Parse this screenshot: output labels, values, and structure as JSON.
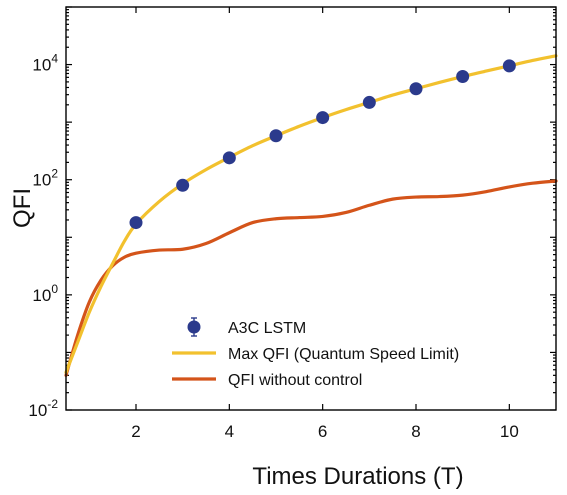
{
  "chart_data": {
    "type": "line",
    "title": "",
    "xlabel": "Times Durations (T)",
    "ylabel": "QFI",
    "xlim": [
      0.5,
      11.0
    ],
    "ylim": [
      0.01,
      100000
    ],
    "yscale": "log",
    "xticks": [
      2,
      4,
      6,
      8,
      10
    ],
    "yticks": [
      {
        "value": 0.01,
        "base": "10",
        "exp": "-2"
      },
      {
        "value": 1,
        "base": "10",
        "exp": "0"
      },
      {
        "value": 100,
        "base": "10",
        "exp": "2"
      },
      {
        "value": 10000,
        "base": "10",
        "exp": "4"
      }
    ],
    "grid": false,
    "legend_position": "lower-right",
    "series": [
      {
        "name": "A3C LSTM",
        "kind": "scatter",
        "color": "#2b3a8c",
        "x": [
          2,
          3,
          4,
          5,
          6,
          7,
          8,
          9,
          10
        ],
        "y": [
          18,
          80,
          240,
          580,
          1200,
          2200,
          3800,
          6200,
          9500
        ]
      },
      {
        "name": "Max QFI (Quantum Speed Limit)",
        "kind": "line",
        "color": "#f2c12e",
        "x": [
          0.5,
          0.75,
          1.0,
          1.25,
          1.5,
          1.75,
          2.0,
          2.5,
          3.0,
          3.5,
          4.0,
          4.5,
          5.0,
          5.5,
          6.0,
          6.5,
          7.0,
          7.5,
          8.0,
          8.5,
          9.0,
          9.5,
          10.0,
          10.5,
          11.0
        ],
        "y": [
          0.045,
          0.15,
          0.5,
          1.4,
          3.5,
          8.5,
          17,
          42,
          85,
          150,
          245,
          390,
          580,
          850,
          1200,
          1650,
          2200,
          2950,
          3800,
          4900,
          6200,
          7700,
          9500,
          11800,
          14200
        ]
      },
      {
        "name": "QFI without control",
        "kind": "line",
        "color": "#d4541a",
        "x": [
          0.5,
          0.75,
          1.0,
          1.25,
          1.5,
          1.75,
          2.0,
          2.5,
          3.0,
          3.5,
          4.0,
          4.5,
          5.0,
          5.5,
          6.0,
          6.5,
          7.0,
          7.5,
          8.0,
          8.5,
          9.0,
          9.5,
          10.0,
          10.5,
          11.0
        ],
        "y": [
          0.04,
          0.2,
          0.75,
          1.8,
          3.2,
          4.5,
          5.3,
          6.0,
          6.2,
          7.8,
          12,
          18,
          21,
          22,
          23,
          27,
          36,
          46,
          50,
          51,
          54,
          62,
          75,
          87,
          95
        ]
      }
    ]
  }
}
